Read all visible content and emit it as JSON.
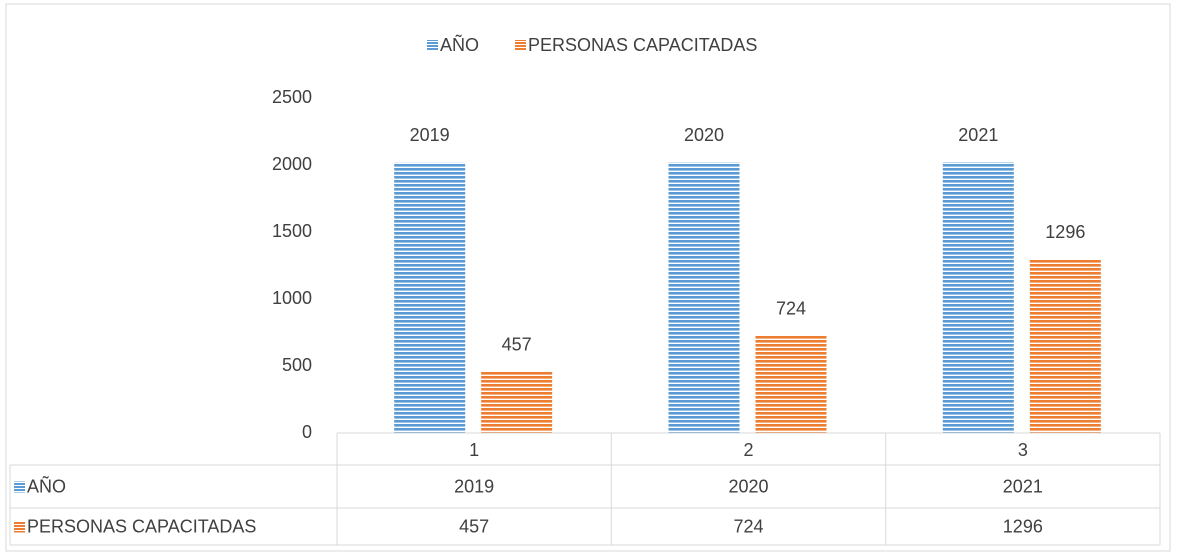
{
  "chart_data": {
    "type": "bar",
    "categories": [
      "1",
      "2",
      "3"
    ],
    "series": [
      {
        "name": "AÑO",
        "color": "#5b9bd5",
        "values": [
          2019,
          2020,
          2021
        ]
      },
      {
        "name": "PERSONAS CAPACITADAS",
        "color": "#ed7d31",
        "values": [
          457,
          724,
          1296
        ]
      }
    ],
    "ylim": [
      0,
      2500
    ],
    "yticks": [
      0,
      500,
      1000,
      1500,
      2000,
      2500
    ],
    "grid": false,
    "legend": "top",
    "data_table": true
  }
}
